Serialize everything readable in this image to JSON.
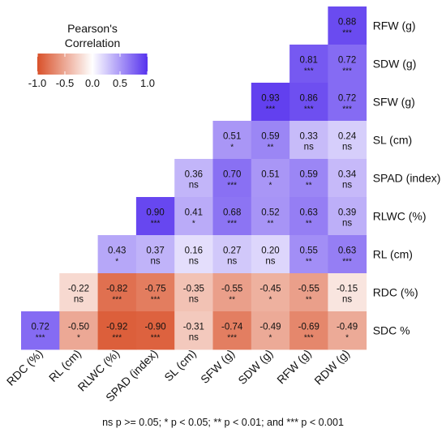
{
  "chart_data": {
    "type": "heatmap",
    "x_labels": [
      "RDC (%)",
      "RL (cm)",
      "RLWC (%)",
      "SPAD (index)",
      "SL (cm)",
      "SFW (g)",
      "SDW (g)",
      "RFW (g)",
      "RDW (g)"
    ],
    "y_labels": [
      "RFW (g)",
      "SDW (g)",
      "SFW (g)",
      "SL (cm)",
      "SPAD (index)",
      "RLWC (%)",
      "RL (cm)",
      "RDC (%)",
      "SDC %"
    ],
    "cells": [
      {
        "x": "RDW (g)",
        "y": "RFW (g)",
        "r": 0.88,
        "r_text": "0.88",
        "sig": "***"
      },
      {
        "x": "RFW (g)",
        "y": "SDW (g)",
        "r": 0.81,
        "r_text": "0.81",
        "sig": "***"
      },
      {
        "x": "RDW (g)",
        "y": "SDW (g)",
        "r": 0.72,
        "r_text": "0.72",
        "sig": "***"
      },
      {
        "x": "SDW (g)",
        "y": "SFW (g)",
        "r": 0.93,
        "r_text": "0.93",
        "sig": "***"
      },
      {
        "x": "RFW (g)",
        "y": "SFW (g)",
        "r": 0.86,
        "r_text": "0.86",
        "sig": "***"
      },
      {
        "x": "RDW (g)",
        "y": "SFW (g)",
        "r": 0.72,
        "r_text": "0.72",
        "sig": "***"
      },
      {
        "x": "SFW (g)",
        "y": "SL (cm)",
        "r": 0.51,
        "r_text": "0.51",
        "sig": "*"
      },
      {
        "x": "SDW (g)",
        "y": "SL (cm)",
        "r": 0.59,
        "r_text": "0.59",
        "sig": "**"
      },
      {
        "x": "RFW (g)",
        "y": "SL (cm)",
        "r": 0.33,
        "r_text": "0.33",
        "sig": "ns"
      },
      {
        "x": "RDW (g)",
        "y": "SL (cm)",
        "r": 0.24,
        "r_text": "0.24",
        "sig": "ns"
      },
      {
        "x": "SL (cm)",
        "y": "SPAD (index)",
        "r": 0.36,
        "r_text": "0.36",
        "sig": "ns"
      },
      {
        "x": "SFW (g)",
        "y": "SPAD (index)",
        "r": 0.7,
        "r_text": "0.70",
        "sig": "***"
      },
      {
        "x": "SDW (g)",
        "y": "SPAD (index)",
        "r": 0.51,
        "r_text": "0.51",
        "sig": "*"
      },
      {
        "x": "RFW (g)",
        "y": "SPAD (index)",
        "r": 0.59,
        "r_text": "0.59",
        "sig": "**"
      },
      {
        "x": "RDW (g)",
        "y": "SPAD (index)",
        "r": 0.34,
        "r_text": "0.34",
        "sig": "ns"
      },
      {
        "x": "SPAD (index)",
        "y": "RLWC (%)",
        "r": 0.9,
        "r_text": "0.90",
        "sig": "***"
      },
      {
        "x": "SL (cm)",
        "y": "RLWC (%)",
        "r": 0.41,
        "r_text": "0.41",
        "sig": "*"
      },
      {
        "x": "SFW (g)",
        "y": "RLWC (%)",
        "r": 0.68,
        "r_text": "0.68",
        "sig": "***"
      },
      {
        "x": "SDW (g)",
        "y": "RLWC (%)",
        "r": 0.52,
        "r_text": "0.52",
        "sig": "**"
      },
      {
        "x": "RFW (g)",
        "y": "RLWC (%)",
        "r": 0.63,
        "r_text": "0.63",
        "sig": "**"
      },
      {
        "x": "RDW (g)",
        "y": "RLWC (%)",
        "r": 0.39,
        "r_text": "0.39",
        "sig": "ns"
      },
      {
        "x": "RLWC (%)",
        "y": "RL (cm)",
        "r": 0.43,
        "r_text": "0.43",
        "sig": "*"
      },
      {
        "x": "SPAD (index)",
        "y": "RL (cm)",
        "r": 0.37,
        "r_text": "0.37",
        "sig": "ns"
      },
      {
        "x": "SL (cm)",
        "y": "RL (cm)",
        "r": 0.16,
        "r_text": "0.16",
        "sig": "ns"
      },
      {
        "x": "SFW (g)",
        "y": "RL (cm)",
        "r": 0.27,
        "r_text": "0.27",
        "sig": "ns"
      },
      {
        "x": "SDW (g)",
        "y": "RL (cm)",
        "r": 0.2,
        "r_text": "0.20",
        "sig": "ns"
      },
      {
        "x": "RFW (g)",
        "y": "RL (cm)",
        "r": 0.55,
        "r_text": "0.55",
        "sig": "**"
      },
      {
        "x": "RDW (g)",
        "y": "RL (cm)",
        "r": 0.63,
        "r_text": "0.63",
        "sig": "***"
      },
      {
        "x": "RL (cm)",
        "y": "RDC (%)",
        "r": -0.22,
        "r_text": "-0.22",
        "sig": "ns"
      },
      {
        "x": "RLWC (%)",
        "y": "RDC (%)",
        "r": -0.82,
        "r_text": "-0.82",
        "sig": "***"
      },
      {
        "x": "SPAD (index)",
        "y": "RDC (%)",
        "r": -0.75,
        "r_text": "-0.75",
        "sig": "***"
      },
      {
        "x": "SL (cm)",
        "y": "RDC (%)",
        "r": -0.35,
        "r_text": "-0.35",
        "sig": "ns"
      },
      {
        "x": "SFW (g)",
        "y": "RDC (%)",
        "r": -0.55,
        "r_text": "-0.55",
        "sig": "**"
      },
      {
        "x": "SDW (g)",
        "y": "RDC (%)",
        "r": -0.45,
        "r_text": "-0.45",
        "sig": "*"
      },
      {
        "x": "RFW (g)",
        "y": "RDC (%)",
        "r": -0.55,
        "r_text": "-0.55",
        "sig": "**"
      },
      {
        "x": "RDW (g)",
        "y": "RDC (%)",
        "r": -0.15,
        "r_text": "-0.15",
        "sig": "ns"
      },
      {
        "x": "RDC (%)",
        "y": "SDC %",
        "r": 0.72,
        "r_text": "0.72",
        "sig": "***"
      },
      {
        "x": "RL (cm)",
        "y": "SDC %",
        "r": -0.5,
        "r_text": "-0.50",
        "sig": "*"
      },
      {
        "x": "RLWC (%)",
        "y": "SDC %",
        "r": -0.92,
        "r_text": "-0.92",
        "sig": "***"
      },
      {
        "x": "SPAD (index)",
        "y": "SDC %",
        "r": -0.9,
        "r_text": "-0.90",
        "sig": "***"
      },
      {
        "x": "SL (cm)",
        "y": "SDC %",
        "r": -0.31,
        "r_text": "-0.31",
        "sig": "ns"
      },
      {
        "x": "SFW (g)",
        "y": "SDC %",
        "r": -0.74,
        "r_text": "-0.74",
        "sig": "***"
      },
      {
        "x": "SDW (g)",
        "y": "SDC %",
        "r": -0.49,
        "r_text": "-0.49",
        "sig": "*"
      },
      {
        "x": "RFW (g)",
        "y": "SDC %",
        "r": -0.69,
        "r_text": "-0.69",
        "sig": "***"
      },
      {
        "x": "RDW (g)",
        "y": "SDC %",
        "r": -0.49,
        "r_text": "-0.49",
        "sig": "*"
      }
    ],
    "legend": {
      "title_line1": "Pearson's",
      "title_line2": "Correlation",
      "range": [
        -1.0,
        1.0
      ],
      "ticks": [
        -1.0,
        -0.5,
        0.0,
        0.5,
        1.0
      ],
      "tick_labels": [
        "-1.0",
        "-0.5",
        "0.0",
        "0.5",
        "1.0"
      ],
      "placement": "top-left"
    },
    "colors": {
      "negative": "#d9512a",
      "zero": "#ffffff",
      "positive": "#5632ee"
    }
  },
  "footnote": "ns p >= 0.05; * p < 0.05; ** p < 0.01; and *** p < 0.001"
}
